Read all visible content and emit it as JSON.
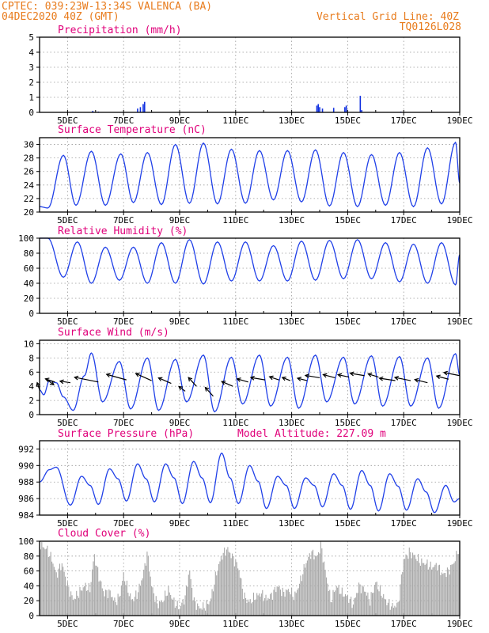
{
  "header": {
    "left_line1": "CPTEC:    039:23W-13:34S   VALENCA (BA)",
    "left_line2": "04DEC2020 40Z (GMT)",
    "right_line1": "Vertical Grid Line: 40Z",
    "right_line2": "TQ0126L028",
    "color": "#e87b1c"
  },
  "colors": {
    "title": "#e0007a",
    "line": "#2040e8",
    "bar_precip": "#1030e0",
    "cloud": "#a8a8a8",
    "grid": "#9a9a9a",
    "wind": "#000000"
  },
  "x_axis": {
    "start_day": 4.0,
    "end_day": 19.0,
    "tick_labels": [
      "5DEC",
      "7DEC",
      "9DEC",
      "11DEC",
      "13DEC",
      "15DEC",
      "17DEC",
      "19DEC"
    ],
    "tick_days": [
      5,
      7,
      9,
      11,
      13,
      15,
      17,
      19
    ]
  },
  "chart_data": [
    {
      "id": "precip",
      "type": "bar",
      "title": "Precipitation (mm/h)",
      "ylabel": "mm/h",
      "ylim": [
        0,
        5
      ],
      "yticks": [
        0,
        1,
        2,
        3,
        4,
        5
      ],
      "points": [
        [
          5.9,
          0.1
        ],
        [
          6.1,
          0.05
        ],
        [
          7.5,
          0.25
        ],
        [
          7.6,
          0.35
        ],
        [
          7.7,
          0.55
        ],
        [
          7.75,
          0.7
        ],
        [
          13.9,
          0.45
        ],
        [
          13.95,
          0.55
        ],
        [
          14.0,
          0.35
        ],
        [
          14.1,
          0.25
        ],
        [
          14.5,
          0.3
        ],
        [
          14.9,
          0.35
        ],
        [
          14.95,
          0.45
        ],
        [
          15.45,
          1.1
        ],
        [
          15.5,
          0.15
        ],
        [
          16.9,
          0.05
        ]
      ]
    },
    {
      "id": "temp",
      "type": "line",
      "title": "Surface Temperature (nC)",
      "ylabel": "nC",
      "ylim": [
        20,
        31
      ],
      "yticks": [
        20,
        22,
        24,
        26,
        28,
        30
      ],
      "peaks": [
        [
          4.0,
          20.8
        ],
        [
          4.3,
          20.6
        ],
        [
          4.85,
          28.4
        ],
        [
          5.3,
          21.0
        ],
        [
          5.85,
          29.0
        ],
        [
          6.35,
          21.0
        ],
        [
          6.9,
          28.6
        ],
        [
          7.35,
          21.4
        ],
        [
          7.85,
          28.8
        ],
        [
          8.35,
          21.1
        ],
        [
          8.85,
          30.0
        ],
        [
          9.35,
          21.3
        ],
        [
          9.85,
          30.2
        ],
        [
          10.35,
          21.2
        ],
        [
          10.85,
          29.3
        ],
        [
          11.35,
          21.3
        ],
        [
          11.85,
          29.1
        ],
        [
          12.35,
          21.8
        ],
        [
          12.85,
          29.1
        ],
        [
          13.35,
          21.5
        ],
        [
          13.85,
          29.2
        ],
        [
          14.35,
          20.9
        ],
        [
          14.85,
          28.8
        ],
        [
          15.35,
          20.8
        ],
        [
          15.85,
          28.5
        ],
        [
          16.35,
          21.0
        ],
        [
          16.85,
          28.8
        ],
        [
          17.35,
          20.8
        ],
        [
          17.85,
          29.5
        ],
        [
          18.35,
          21.2
        ],
        [
          18.85,
          30.3
        ],
        [
          19.0,
          24.3
        ]
      ]
    },
    {
      "id": "rh",
      "type": "line",
      "title": "Relative Humidity (%)",
      "ylabel": "%",
      "ylim": [
        0,
        100
      ],
      "yticks": [
        0,
        20,
        40,
        60,
        80,
        100
      ],
      "peaks": [
        [
          4.0,
          100
        ],
        [
          4.3,
          100
        ],
        [
          4.85,
          48
        ],
        [
          5.35,
          95
        ],
        [
          5.85,
          40
        ],
        [
          6.35,
          88
        ],
        [
          6.85,
          44
        ],
        [
          7.35,
          88
        ],
        [
          7.85,
          40
        ],
        [
          8.35,
          94
        ],
        [
          8.85,
          40
        ],
        [
          9.35,
          98
        ],
        [
          9.85,
          39
        ],
        [
          10.35,
          95
        ],
        [
          10.85,
          43
        ],
        [
          11.35,
          95
        ],
        [
          11.85,
          43
        ],
        [
          12.35,
          90
        ],
        [
          12.85,
          43
        ],
        [
          13.35,
          96
        ],
        [
          13.85,
          44
        ],
        [
          14.35,
          97
        ],
        [
          14.85,
          46
        ],
        [
          15.35,
          98
        ],
        [
          15.85,
          46
        ],
        [
          16.35,
          94
        ],
        [
          16.85,
          42
        ],
        [
          17.35,
          92
        ],
        [
          17.85,
          40
        ],
        [
          18.35,
          94
        ],
        [
          18.85,
          38
        ],
        [
          19.0,
          78
        ]
      ]
    },
    {
      "id": "wind",
      "type": "line",
      "title": "Surface Wind (m/s)",
      "ylabel": "m/s",
      "ylim": [
        0,
        10.5
      ],
      "yticks": [
        0,
        2,
        4,
        6,
        8,
        10
      ],
      "peaks": [
        [
          4.0,
          3.5
        ],
        [
          4.15,
          2.8
        ],
        [
          4.35,
          4.8
        ],
        [
          4.6,
          4.5
        ],
        [
          4.85,
          2.5
        ],
        [
          5.2,
          0.6
        ],
        [
          5.6,
          5.5
        ],
        [
          5.85,
          8.7
        ],
        [
          6.25,
          1.8
        ],
        [
          6.85,
          7.5
        ],
        [
          7.25,
          0.8
        ],
        [
          7.85,
          8.0
        ],
        [
          8.25,
          0.6
        ],
        [
          8.85,
          7.8
        ],
        [
          9.25,
          1.8
        ],
        [
          9.85,
          8.4
        ],
        [
          10.25,
          0.4
        ],
        [
          10.85,
          8.1
        ],
        [
          11.25,
          1.5
        ],
        [
          11.85,
          8.4
        ],
        [
          12.25,
          1.2
        ],
        [
          12.85,
          8.1
        ],
        [
          13.25,
          0.9
        ],
        [
          13.85,
          8.4
        ],
        [
          14.25,
          1.8
        ],
        [
          14.85,
          8.1
        ],
        [
          15.25,
          1.5
        ],
        [
          15.85,
          8.3
        ],
        [
          16.25,
          1.2
        ],
        [
          16.85,
          8.2
        ],
        [
          17.25,
          1.2
        ],
        [
          17.85,
          8.0
        ],
        [
          18.25,
          0.9
        ],
        [
          18.85,
          8.6
        ],
        [
          19.0,
          5.6
        ]
      ],
      "arrows": [
        [
          4.0,
          3.5,
          -3,
          -9
        ],
        [
          4.25,
          5.0,
          9,
          7
        ],
        [
          4.55,
          4.6,
          -12,
          -4
        ],
        [
          5.1,
          4.5,
          -13,
          -2
        ],
        [
          6.1,
          4.6,
          -30,
          -6
        ],
        [
          7.1,
          4.9,
          -25,
          -7
        ],
        [
          8.0,
          4.8,
          -20,
          -9
        ],
        [
          8.7,
          4.4,
          -16,
          -7
        ],
        [
          9.2,
          3.3,
          -8,
          -6
        ],
        [
          9.6,
          4.0,
          -10,
          -11
        ],
        [
          10.2,
          2.6,
          -10,
          -11
        ],
        [
          10.9,
          4.0,
          -14,
          -6
        ],
        [
          11.45,
          4.6,
          -14,
          -4
        ],
        [
          12.05,
          4.9,
          -18,
          -3
        ],
        [
          12.55,
          4.9,
          -12,
          -4
        ],
        [
          12.95,
          4.8,
          -10,
          -4
        ],
        [
          13.55,
          4.8,
          -12,
          -3
        ],
        [
          14.0,
          5.2,
          -18,
          -3
        ],
        [
          14.55,
          5.2,
          -15,
          -4
        ],
        [
          15.05,
          5.3,
          -14,
          -3
        ],
        [
          15.6,
          5.5,
          -18,
          -3
        ],
        [
          16.1,
          5.3,
          -13,
          -4
        ],
        [
          16.7,
          4.8,
          -20,
          -3
        ],
        [
          17.25,
          4.8,
          -20,
          -4
        ],
        [
          17.85,
          4.5,
          -16,
          -4
        ],
        [
          18.6,
          5.0,
          -15,
          -4
        ],
        [
          19.0,
          5.5,
          -20,
          -4
        ]
      ]
    },
    {
      "id": "pressure",
      "type": "line",
      "title": "Surface Pressure (hPa)",
      "extra_label": "Model Altitude: 227.09 m",
      "ylabel": "hPa",
      "ylim": [
        984,
        993
      ],
      "yticks": [
        984,
        986,
        988,
        990,
        992
      ],
      "peaks": [
        [
          4.0,
          988.0
        ],
        [
          4.35,
          989.5
        ],
        [
          4.6,
          989.8
        ],
        [
          5.1,
          985.2
        ],
        [
          5.5,
          988.7
        ],
        [
          5.8,
          987.6
        ],
        [
          6.1,
          985.3
        ],
        [
          6.5,
          989.6
        ],
        [
          6.8,
          988.4
        ],
        [
          7.1,
          985.7
        ],
        [
          7.5,
          990.2
        ],
        [
          7.8,
          988.4
        ],
        [
          8.1,
          985.6
        ],
        [
          8.5,
          990.2
        ],
        [
          8.8,
          988.5
        ],
        [
          9.1,
          985.4
        ],
        [
          9.5,
          990.5
        ],
        [
          9.8,
          988.5
        ],
        [
          10.1,
          985.5
        ],
        [
          10.5,
          991.5
        ],
        [
          10.8,
          988.5
        ],
        [
          11.1,
          985.4
        ],
        [
          11.5,
          990.0
        ],
        [
          11.8,
          988.1
        ],
        [
          12.1,
          984.8
        ],
        [
          12.5,
          988.7
        ],
        [
          12.8,
          987.6
        ],
        [
          13.1,
          984.8
        ],
        [
          13.5,
          988.5
        ],
        [
          13.8,
          987.6
        ],
        [
          14.1,
          985.0
        ],
        [
          14.5,
          989.0
        ],
        [
          14.8,
          987.6
        ],
        [
          15.1,
          984.7
        ],
        [
          15.5,
          989.4
        ],
        [
          15.8,
          987.6
        ],
        [
          16.1,
          984.5
        ],
        [
          16.5,
          989.0
        ],
        [
          16.8,
          987.5
        ],
        [
          17.1,
          984.6
        ],
        [
          17.5,
          988.4
        ],
        [
          17.8,
          986.8
        ],
        [
          18.1,
          984.3
        ],
        [
          18.5,
          987.6
        ],
        [
          18.8,
          985.6
        ],
        [
          19.0,
          986.0
        ]
      ]
    },
    {
      "id": "cloud",
      "type": "area",
      "title": "Cloud Cover (%)",
      "ylabel": "%",
      "ylim": [
        0,
        100
      ],
      "yticks": [
        0,
        20,
        40,
        60,
        80,
        100
      ],
      "profile": [
        [
          4.0,
          95
        ],
        [
          4.25,
          90
        ],
        [
          4.45,
          75
        ],
        [
          4.6,
          55
        ],
        [
          4.8,
          70
        ],
        [
          5.0,
          40
        ],
        [
          5.2,
          22
        ],
        [
          5.4,
          30
        ],
        [
          5.6,
          40
        ],
        [
          5.8,
          35
        ],
        [
          5.95,
          82
        ],
        [
          6.1,
          55
        ],
        [
          6.3,
          30
        ],
        [
          6.5,
          32
        ],
        [
          6.7,
          18
        ],
        [
          6.85,
          25
        ],
        [
          7.0,
          55
        ],
        [
          7.15,
          35
        ],
        [
          7.3,
          20
        ],
        [
          7.5,
          30
        ],
        [
          7.7,
          55
        ],
        [
          7.85,
          85
        ],
        [
          8.0,
          40
        ],
        [
          8.2,
          15
        ],
        [
          8.4,
          20
        ],
        [
          8.6,
          35
        ],
        [
          8.8,
          18
        ],
        [
          9.0,
          10
        ],
        [
          9.2,
          25
        ],
        [
          9.35,
          62
        ],
        [
          9.5,
          20
        ],
        [
          9.7,
          10
        ],
        [
          9.9,
          12
        ],
        [
          10.1,
          20
        ],
        [
          10.3,
          55
        ],
        [
          10.5,
          80
        ],
        [
          10.7,
          90
        ],
        [
          10.9,
          78
        ],
        [
          11.1,
          65
        ],
        [
          11.3,
          25
        ],
        [
          11.5,
          18
        ],
        [
          11.7,
          25
        ],
        [
          11.9,
          30
        ],
        [
          12.1,
          22
        ],
        [
          12.3,
          28
        ],
        [
          12.5,
          40
        ],
        [
          12.7,
          30
        ],
        [
          12.9,
          35
        ],
        [
          13.1,
          25
        ],
        [
          13.3,
          45
        ],
        [
          13.5,
          70
        ],
        [
          13.7,
          85
        ],
        [
          13.9,
          78
        ],
        [
          14.05,
          95
        ],
        [
          14.2,
          60
        ],
        [
          14.4,
          20
        ],
        [
          14.6,
          40
        ],
        [
          14.8,
          30
        ],
        [
          15.0,
          25
        ],
        [
          15.2,
          15
        ],
        [
          15.4,
          40
        ],
        [
          15.6,
          35
        ],
        [
          15.8,
          20
        ],
        [
          16.0,
          45
        ],
        [
          16.2,
          30
        ],
        [
          16.4,
          18
        ],
        [
          16.6,
          12
        ],
        [
          16.8,
          15
        ],
        [
          17.0,
          75
        ],
        [
          17.2,
          85
        ],
        [
          17.4,
          80
        ],
        [
          17.6,
          72
        ],
        [
          17.8,
          70
        ],
        [
          18.0,
          65
        ],
        [
          18.2,
          68
        ],
        [
          18.4,
          55
        ],
        [
          18.6,
          60
        ],
        [
          18.8,
          72
        ],
        [
          19.0,
          93
        ]
      ]
    }
  ]
}
